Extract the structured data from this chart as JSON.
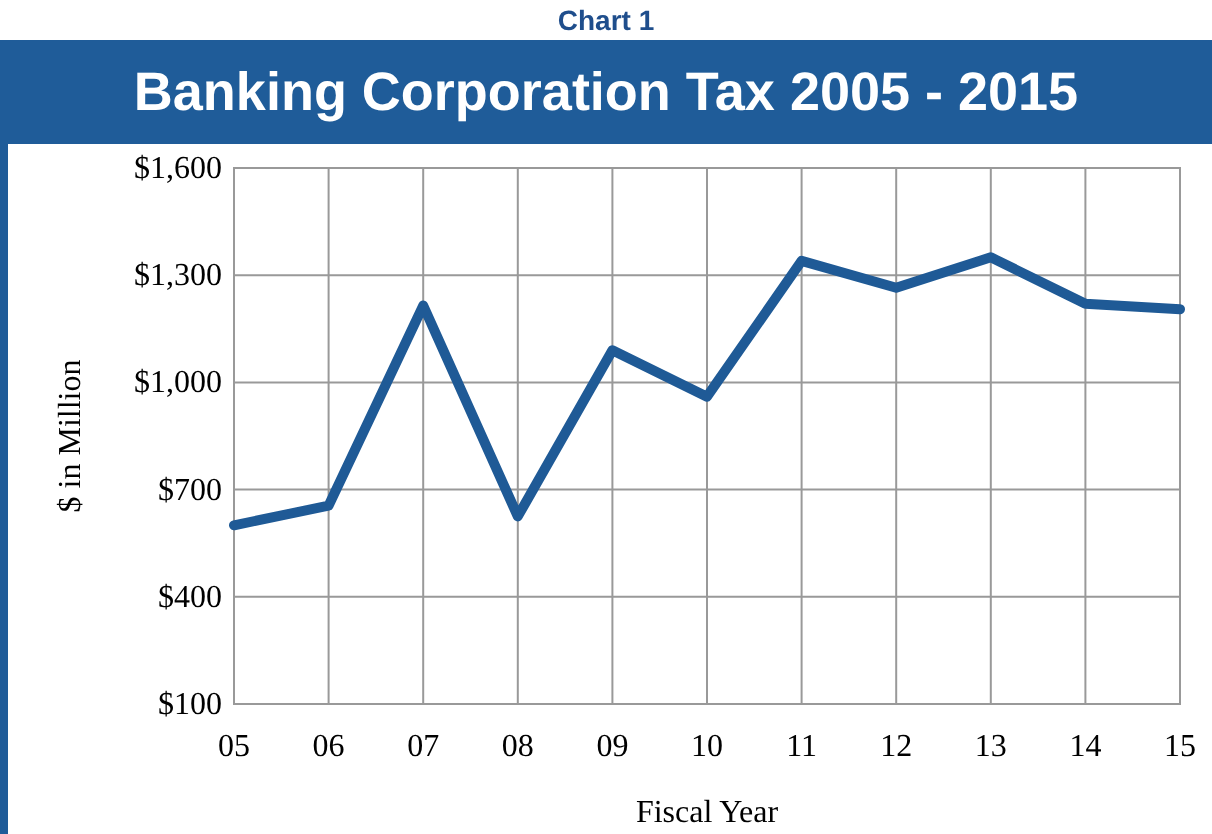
{
  "chart_data": {
    "type": "line",
    "title": "Banking Corporation Tax 2005 - 2015",
    "subtitle": "Chart 1",
    "xlabel": "Fiscal Year",
    "ylabel": "$ in Million",
    "categories": [
      "05",
      "06",
      "07",
      "08",
      "09",
      "10",
      "11",
      "12",
      "13",
      "14",
      "15"
    ],
    "series": [
      {
        "color": "#1f5a96",
        "values": [
          600,
          655,
          1215,
          625,
          1090,
          960,
          1340,
          1265,
          1350,
          1220,
          1205
        ]
      }
    ],
    "ylim": [
      100,
      1600
    ],
    "yticks": [
      {
        "value": 100,
        "label": "$100"
      },
      {
        "value": 400,
        "label": "$400"
      },
      {
        "value": 700,
        "label": "$700"
      },
      {
        "value": 1000,
        "label": "$1,000"
      },
      {
        "value": 1300,
        "label": "$1,300"
      },
      {
        "value": 1600,
        "label": "$1,600"
      }
    ],
    "grid": true,
    "marker": "none",
    "line_style": "solid"
  }
}
